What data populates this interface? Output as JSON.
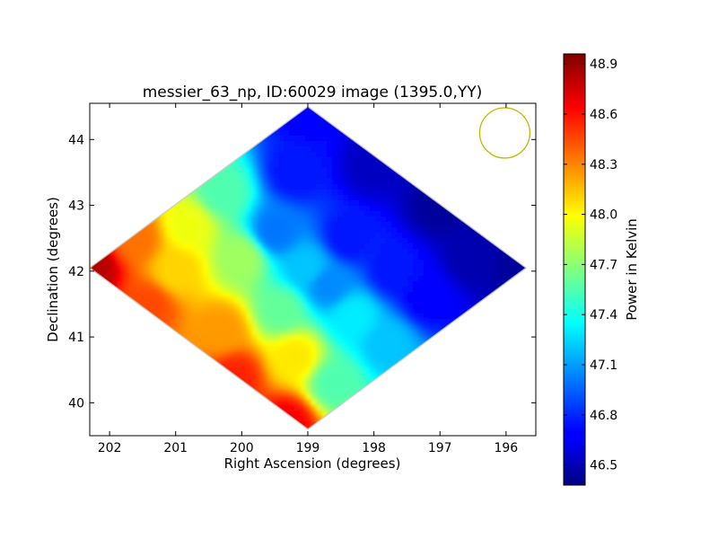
{
  "chart_data": {
    "type": "heatmap",
    "title": "messier_63_np, ID:60029 image (1395.0,YY)",
    "xlabel": "Right Ascension (degrees)",
    "ylabel": "Declination (degrees)",
    "xlim": [
      202.3,
      195.55
    ],
    "ylim": [
      39.5,
      44.55
    ],
    "x_ticks": [
      {
        "value": 202,
        "label": "202"
      },
      {
        "value": 201,
        "label": "201"
      },
      {
        "value": 200,
        "label": "200"
      },
      {
        "value": 199,
        "label": "199"
      },
      {
        "value": 198,
        "label": "198"
      },
      {
        "value": 197,
        "label": "197"
      },
      {
        "value": 196,
        "label": "196"
      }
    ],
    "y_ticks": [
      {
        "value": 40,
        "label": "40"
      },
      {
        "value": 41,
        "label": "41"
      },
      {
        "value": 42,
        "label": "42"
      },
      {
        "value": 43,
        "label": "43"
      },
      {
        "value": 44,
        "label": "44"
      }
    ],
    "colorbar": {
      "label": "Power in Kelvin",
      "range": [
        46.38,
        48.96
      ],
      "ticks": [
        {
          "value": 46.5,
          "label": "46.5"
        },
        {
          "value": 46.8,
          "label": "46.8"
        },
        {
          "value": 47.1,
          "label": "47.1"
        },
        {
          "value": 47.4,
          "label": "47.4"
        },
        {
          "value": 47.7,
          "label": "47.7"
        },
        {
          "value": 48.0,
          "label": "48.0"
        },
        {
          "value": 48.3,
          "label": "48.3"
        },
        {
          "value": 48.6,
          "label": "48.6"
        },
        {
          "value": 48.9,
          "label": "48.9"
        }
      ],
      "colormap": "jet"
    },
    "footprint_diamond": {
      "center": [
        199.0,
        42.05
      ],
      "half_width_ra": 3.3,
      "half_height_dec": 2.45
    },
    "beam_circle": {
      "ra": 196.02,
      "dec": 44.1,
      "radius_ra": 0.38,
      "color": "#c8b400"
    },
    "field_samples": [
      {
        "ra": 202.25,
        "dec": 42.05,
        "value": 48.82
      },
      {
        "ra": 201.6,
        "dec": 42.5,
        "value": 48.35
      },
      {
        "ra": 201.4,
        "dec": 41.5,
        "value": 48.45
      },
      {
        "ra": 201.0,
        "dec": 42.0,
        "value": 48.1
      },
      {
        "ra": 200.8,
        "dec": 42.7,
        "value": 47.95
      },
      {
        "ra": 200.3,
        "dec": 43.2,
        "value": 47.55
      },
      {
        "ra": 200.0,
        "dec": 42.2,
        "value": 47.75
      },
      {
        "ra": 200.3,
        "dec": 41.1,
        "value": 48.25
      },
      {
        "ra": 200.1,
        "dec": 40.4,
        "value": 48.55
      },
      {
        "ra": 199.3,
        "dec": 39.7,
        "value": 48.65
      },
      {
        "ra": 199.2,
        "dec": 40.7,
        "value": 48.05
      },
      {
        "ra": 199.4,
        "dec": 41.4,
        "value": 47.6
      },
      {
        "ra": 199.5,
        "dec": 42.6,
        "value": 47.0
      },
      {
        "ra": 199.2,
        "dec": 43.5,
        "value": 46.75
      },
      {
        "ra": 199.0,
        "dec": 44.4,
        "value": 46.7
      },
      {
        "ra": 199.0,
        "dec": 42.05,
        "value": 47.2
      },
      {
        "ra": 198.7,
        "dec": 41.8,
        "value": 47.05
      },
      {
        "ra": 198.4,
        "dec": 42.5,
        "value": 46.75
      },
      {
        "ra": 198.3,
        "dec": 41.3,
        "value": 47.3
      },
      {
        "ra": 198.6,
        "dec": 40.3,
        "value": 47.55
      },
      {
        "ra": 197.8,
        "dec": 40.9,
        "value": 47.2
      },
      {
        "ra": 197.7,
        "dec": 42.0,
        "value": 46.75
      },
      {
        "ra": 198.0,
        "dec": 43.6,
        "value": 46.55
      },
      {
        "ra": 197.0,
        "dec": 43.0,
        "value": 46.45
      },
      {
        "ra": 197.2,
        "dec": 41.6,
        "value": 46.7
      },
      {
        "ra": 196.5,
        "dec": 42.2,
        "value": 46.5
      },
      {
        "ra": 195.8,
        "dec": 42.05,
        "value": 46.45
      }
    ]
  }
}
